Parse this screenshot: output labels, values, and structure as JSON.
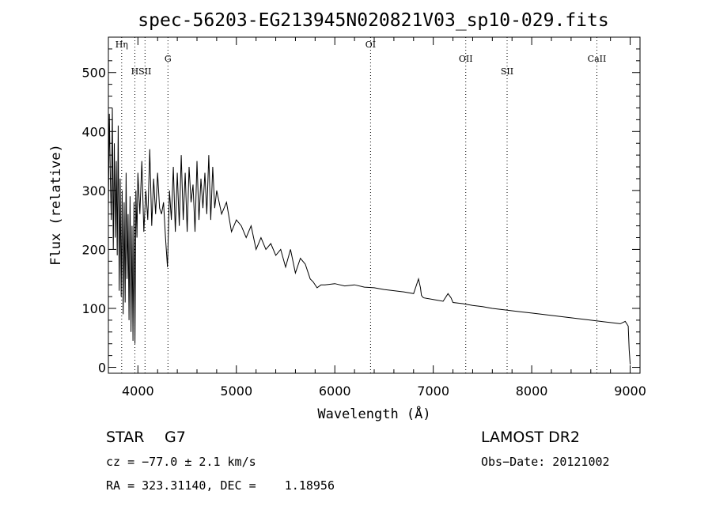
{
  "chart_data": {
    "type": "line",
    "title": "spec-56203-EG213945N020821V03_sp10-029.fits",
    "xlabel": "Wavelength (Å)",
    "ylabel": "Flux (relative)",
    "xlim": [
      3700,
      9100
    ],
    "ylim": [
      -10,
      560
    ],
    "x_ticks": [
      4000,
      5000,
      6000,
      7000,
      8000,
      9000
    ],
    "y_ticks": [
      0,
      100,
      200,
      300,
      400,
      500
    ],
    "grid": false,
    "spectral_lines": [
      {
        "label": "Hη",
        "x": 3835
      },
      {
        "label": "H",
        "x": 3969
      },
      {
        "label": "SII",
        "x": 4072
      },
      {
        "label": "G",
        "x": 4305
      },
      {
        "label": "OI",
        "x": 6363
      },
      {
        "label": "OII",
        "x": 7330
      },
      {
        "label": "SII",
        "x": 7750
      },
      {
        "label": "CaII",
        "x": 8662
      }
    ],
    "series": [
      {
        "x": [
          3700,
          3710,
          3720,
          3730,
          3740,
          3750,
          3760,
          3770,
          3780,
          3790,
          3800,
          3810,
          3820,
          3830,
          3840,
          3850,
          3860,
          3870,
          3880,
          3890,
          3900,
          3910,
          3920,
          3930,
          3940,
          3950,
          3960,
          3970,
          3980,
          3990,
          4000,
          4020,
          4040,
          4060,
          4080,
          4100,
          4120,
          4140,
          4160,
          4180,
          4200,
          4220,
          4240,
          4260,
          4280,
          4300,
          4320,
          4340,
          4360,
          4380,
          4400,
          4420,
          4440,
          4460,
          4480,
          4500,
          4520,
          4540,
          4560,
          4580,
          4600,
          4620,
          4640,
          4660,
          4680,
          4700,
          4720,
          4740,
          4760,
          4780,
          4800,
          4850,
          4900,
          4950,
          5000,
          5050,
          5100,
          5150,
          5200,
          5250,
          5300,
          5350,
          5400,
          5450,
          5500,
          5550,
          5600,
          5650,
          5700,
          5750,
          5780,
          5820,
          5860,
          5900,
          6000,
          6100,
          6200,
          6300,
          6400,
          6500,
          6600,
          6700,
          6800,
          6850,
          6870,
          6880,
          6900,
          7000,
          7100,
          7150,
          7180,
          7200,
          7300,
          7400,
          7500,
          7600,
          7700,
          7800,
          7900,
          8000,
          8100,
          8200,
          8300,
          8400,
          8500,
          8600,
          8700,
          8800,
          8850,
          8900,
          8950,
          8980,
          8990,
          9000
        ],
        "values": [
          270,
          430,
          320,
          250,
          440,
          200,
          380,
          220,
          350,
          190,
          410,
          130,
          320,
          120,
          300,
          90,
          280,
          110,
          330,
          150,
          260,
          80,
          290,
          60,
          240,
          45,
          280,
          40,
          300,
          220,
          330,
          260,
          350,
          230,
          300,
          250,
          370,
          240,
          320,
          260,
          330,
          270,
          260,
          280,
          220,
          170,
          300,
          250,
          340,
          230,
          330,
          240,
          360,
          250,
          330,
          230,
          340,
          280,
          310,
          230,
          350,
          250,
          320,
          270,
          330,
          260,
          360,
          250,
          340,
          270,
          300,
          260,
          280,
          230,
          250,
          240,
          220,
          240,
          200,
          220,
          200,
          210,
          190,
          200,
          170,
          200,
          160,
          185,
          175,
          150,
          145,
          135,
          140,
          140,
          142,
          138,
          140,
          136,
          135,
          132,
          130,
          128,
          125,
          150,
          135,
          122,
          118,
          115,
          112,
          125,
          118,
          110,
          108,
          105,
          103,
          100,
          98,
          96,
          94,
          92,
          90,
          88,
          86,
          84,
          82,
          80,
          78,
          76,
          75,
          74,
          78,
          70,
          30,
          5
        ]
      }
    ]
  },
  "info": {
    "object_class": "STAR",
    "subclass": "G7",
    "survey": "LAMOST DR2",
    "cz": "cz = −77.0 ± 2.1 km/s",
    "obs_date": "Obs−Date: 20121002",
    "coords": "RA = 323.31140, DEC =    1.18956"
  }
}
